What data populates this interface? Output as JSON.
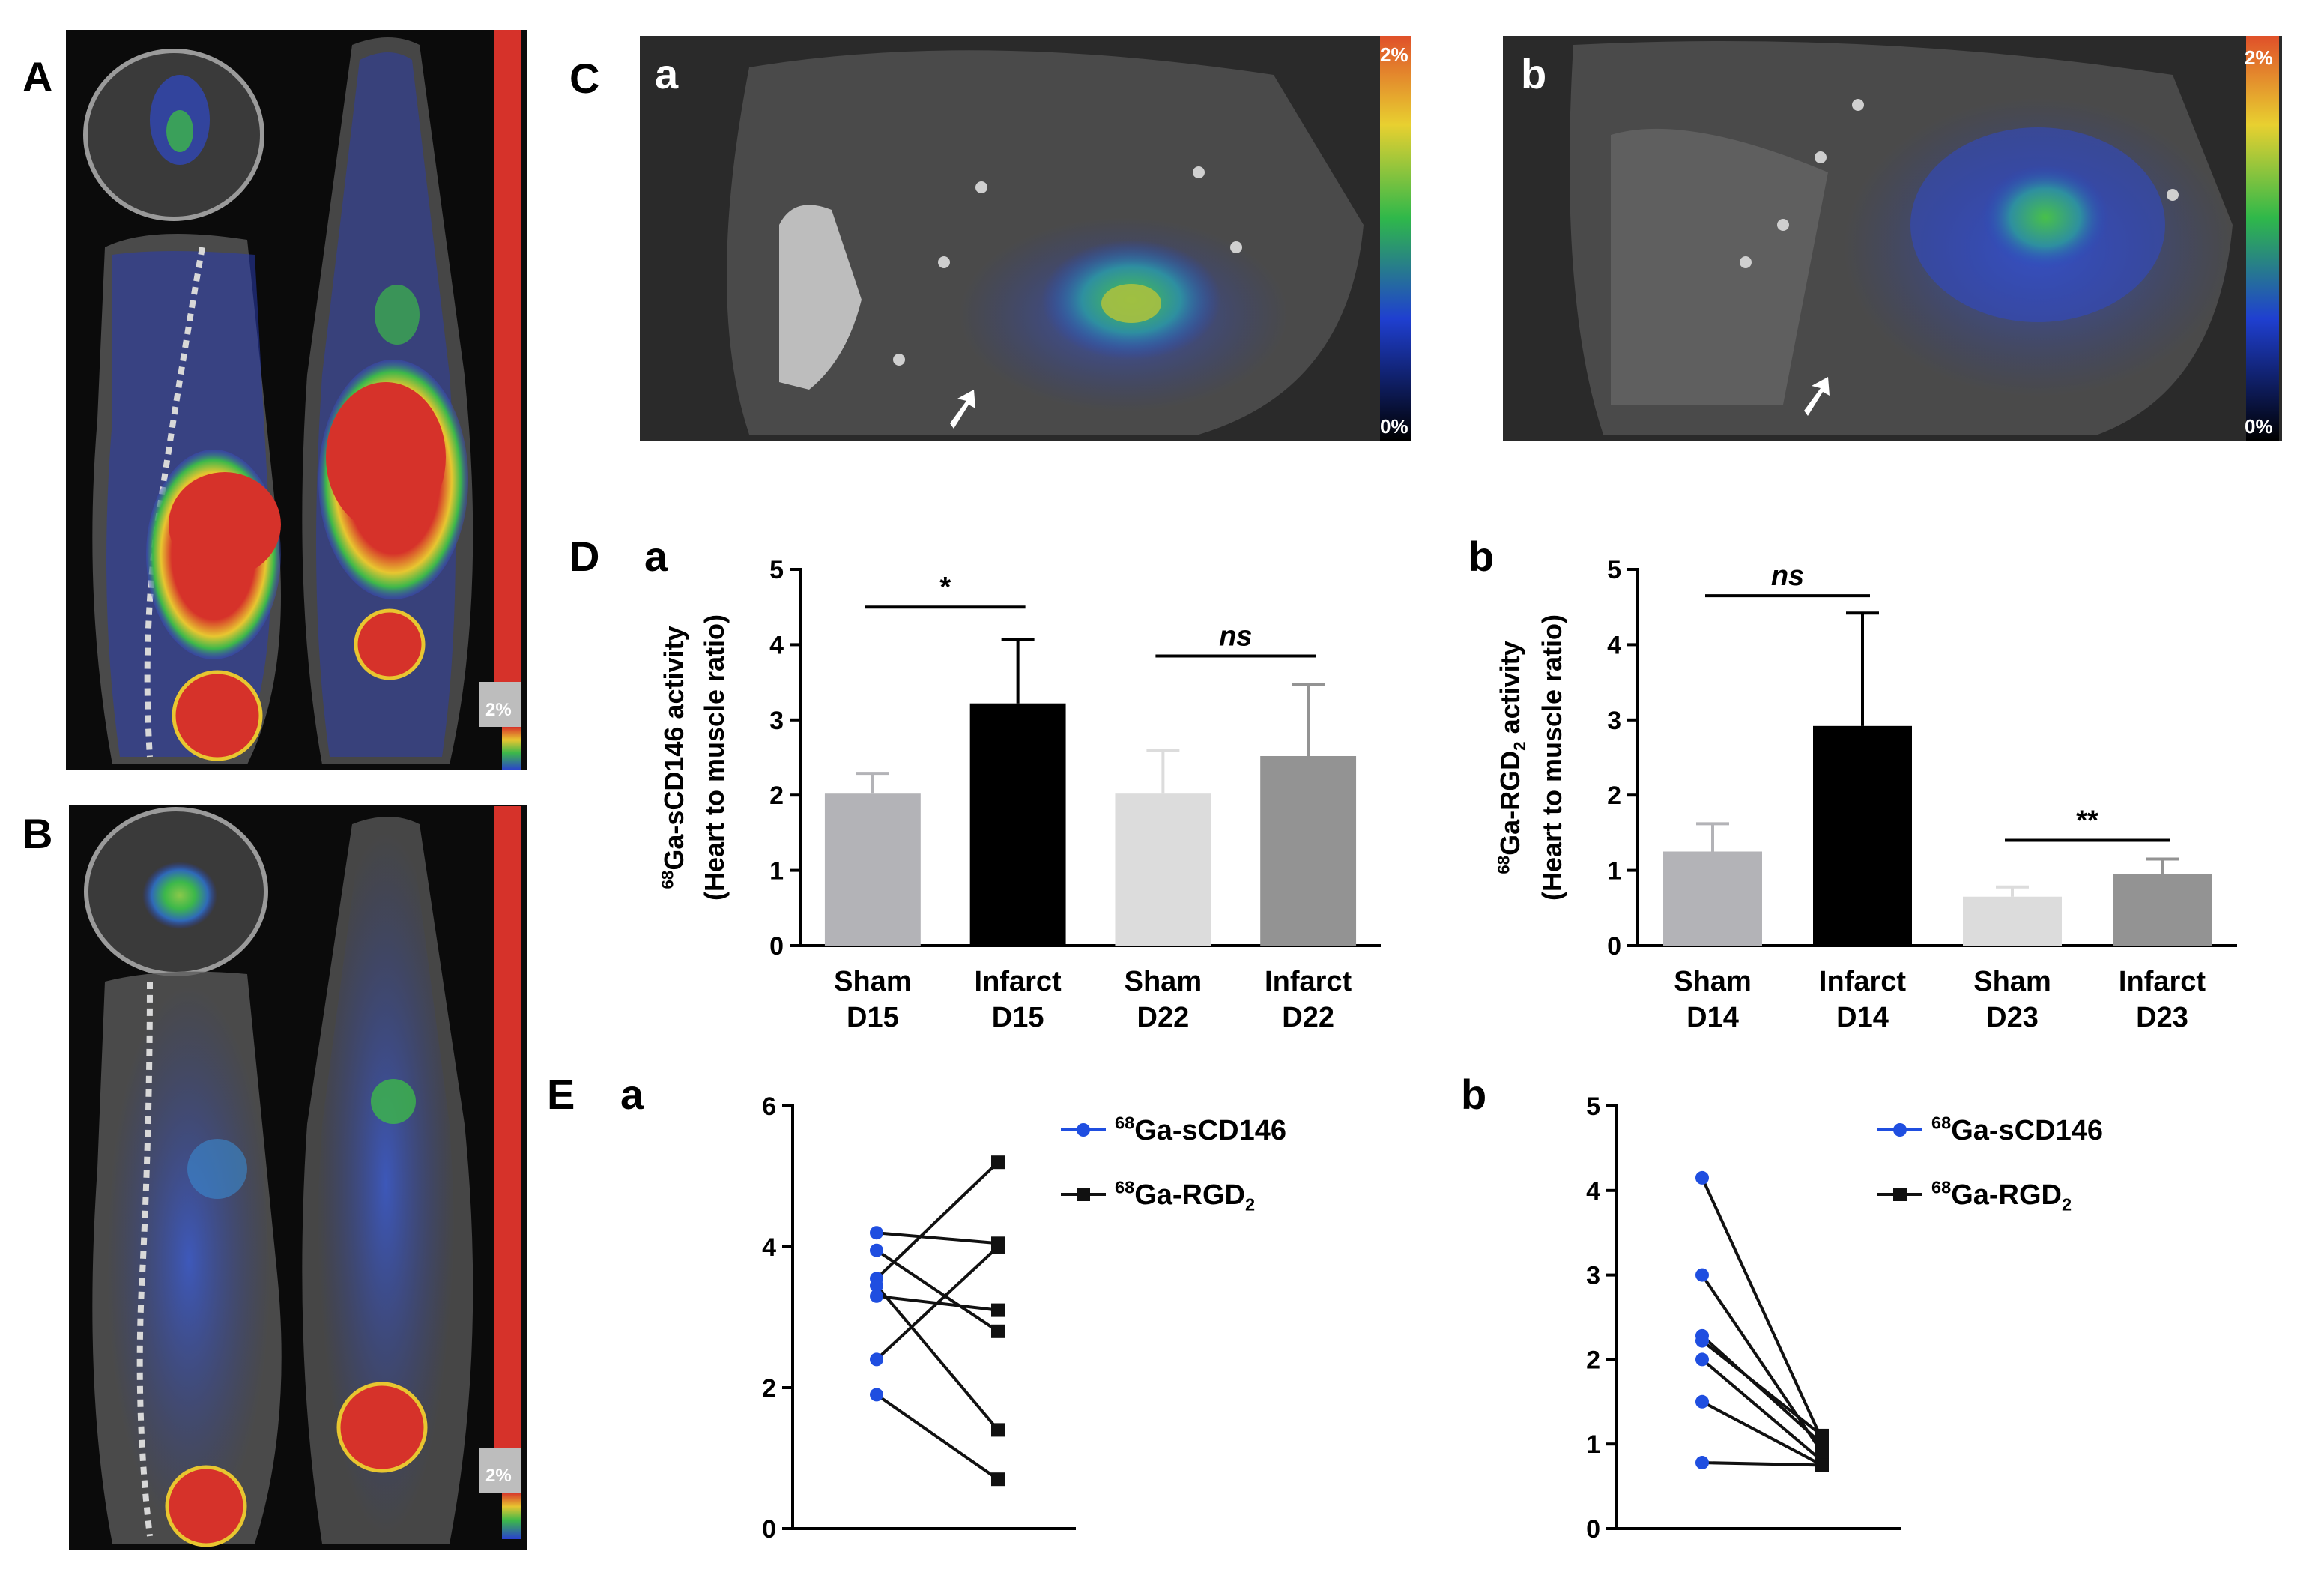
{
  "panel_letters": {
    "A": "A",
    "B": "B",
    "C": "C",
    "D": "D",
    "E": "E",
    "Ca": "a",
    "Cb": "b",
    "Da": "a",
    "Db": "b",
    "Ea": "a",
    "Eb": "b"
  },
  "scale_labels": {
    "A_max": "2%",
    "B_max": "2%",
    "Ca_max": "2%",
    "Ca_min": "0%",
    "Cb_max": "2%",
    "Cb_min": "0%"
  },
  "colors": {
    "hot": "#d6322a",
    "warm": "#e8c630",
    "mid": "#3cb84a",
    "cool": "#3a4cc8",
    "ct_dark": "#1a1a1a",
    "ct_gray": "#7a7a7a",
    "blue_series": "#1f4ee0",
    "black_series": "#111111",
    "bar_sham1": "#b3b3b7",
    "bar_inf1": "#000000",
    "bar_sham2": "#dcdcdc",
    "bar_inf2": "#939393"
  },
  "chart_data": [
    {
      "id": "Da",
      "type": "bar",
      "categories": [
        "Sham D15",
        "Infarct D15",
        "Sham D22",
        "Infarct D22"
      ],
      "category_lines": [
        [
          "Sham",
          "D15"
        ],
        [
          "Infarct",
          "D15"
        ],
        [
          "Sham",
          "D22"
        ],
        [
          "Infarct",
          "D22"
        ]
      ],
      "values": [
        2.02,
        3.22,
        2.02,
        2.52
      ],
      "errors": [
        0.27,
        0.85,
        0.58,
        0.95
      ],
      "ylabel_top": "68Ga-sCD146 activity",
      "ylabel_bottom": "(Heart to muscle ratio)",
      "ylim": [
        0,
        5
      ],
      "yticks": [
        "0",
        "1",
        "2",
        "3",
        "4",
        "5"
      ],
      "significance": [
        {
          "from": 0,
          "to": 1,
          "label": "*",
          "y": 4.5
        },
        {
          "from": 2,
          "to": 3,
          "label": "ns",
          "y": 3.85
        }
      ]
    },
    {
      "id": "Db",
      "type": "bar",
      "categories": [
        "Sham D14",
        "Infarct D14",
        "Sham D23",
        "Infarct D23"
      ],
      "category_lines": [
        [
          "Sham",
          "D14"
        ],
        [
          "Infarct",
          "D14"
        ],
        [
          "Sham",
          "D23"
        ],
        [
          "Infarct",
          "D23"
        ]
      ],
      "values": [
        1.25,
        2.92,
        0.65,
        0.95
      ],
      "errors": [
        0.37,
        1.5,
        0.13,
        0.2
      ],
      "ylabel_top": "68Ga-RGD2 activity",
      "ylabel_bottom": "(Heart to muscle ratio)",
      "ylim": [
        0,
        5
      ],
      "yticks": [
        "0",
        "1",
        "2",
        "3",
        "4",
        "5"
      ],
      "significance": [
        {
          "from": 0,
          "to": 1,
          "label": "ns",
          "y": 4.65
        },
        {
          "from": 2,
          "to": 3,
          "label": "**",
          "y": 1.4
        }
      ]
    },
    {
      "id": "Ea",
      "type": "line",
      "ylim": [
        0,
        6
      ],
      "yticks": [
        "0",
        "2",
        "4",
        "6"
      ],
      "series": [
        {
          "name": "68Ga-sCD146",
          "values": [
            4.2,
            3.95,
            3.55,
            3.45,
            3.3,
            2.4,
            1.9
          ]
        },
        {
          "name": "68Ga-RGD2",
          "values": [
            4.05,
            2.8,
            5.2,
            1.4,
            3.1,
            4.0,
            0.7
          ]
        }
      ],
      "legend": [
        "68Ga-sCD146",
        "68Ga-RGD2"
      ]
    },
    {
      "id": "Eb",
      "type": "line",
      "ylim": [
        0,
        5
      ],
      "yticks": [
        "0",
        "1",
        "2",
        "3",
        "4",
        "5"
      ],
      "series": [
        {
          "name": "68Ga-sCD146",
          "values": [
            4.15,
            3.0,
            2.28,
            2.22,
            2.0,
            1.5,
            0.78
          ]
        },
        {
          "name": "68Ga-RGD2",
          "values": [
            1.05,
            0.9,
            1.0,
            1.1,
            0.8,
            0.75,
            0.75
          ]
        }
      ],
      "legend": [
        "68Ga-sCD146",
        "68Ga-RGD2"
      ]
    }
  ]
}
